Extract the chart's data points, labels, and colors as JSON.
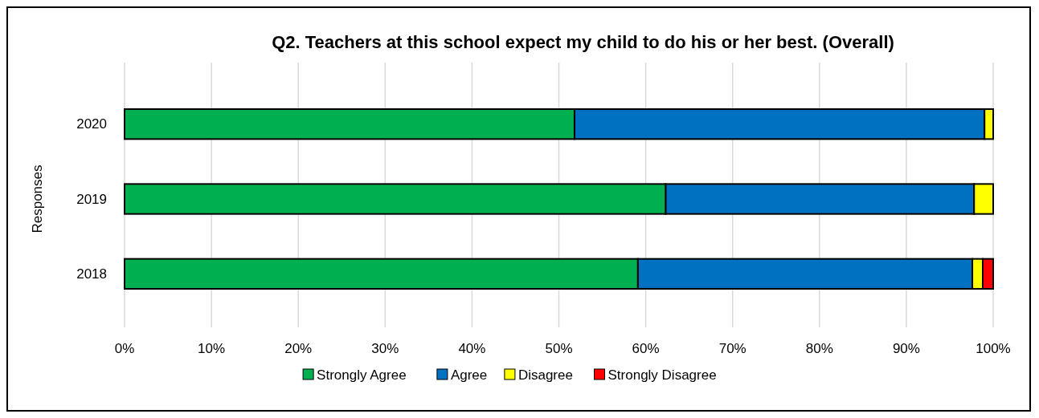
{
  "chart_data": {
    "type": "bar",
    "orientation": "horizontal",
    "stacked": true,
    "title": "Q2. Teachers at this school expect my child to do his or her best. (Overall)",
    "ylabel": "Responses",
    "categories": [
      "2020",
      "2019",
      "2018"
    ],
    "series": [
      {
        "name": "Strongly Agree",
        "color": "#00b050",
        "values": [
          51.8,
          62.3,
          59.1
        ]
      },
      {
        "name": "Agree",
        "color": "#0070c0",
        "values": [
          47.2,
          35.5,
          38.5
        ]
      },
      {
        "name": "Disagree",
        "color": "#ffff00",
        "values": [
          1.0,
          2.2,
          1.2
        ]
      },
      {
        "name": "Strongly Disagree",
        "color": "#ff0000",
        "values": [
          null,
          null,
          1.2
        ]
      }
    ],
    "xlim": [
      0,
      100
    ],
    "xticks": [
      {
        "value": 0,
        "label": "0%"
      },
      {
        "value": 10,
        "label": "10%"
      },
      {
        "value": 20,
        "label": "20%"
      },
      {
        "value": 30,
        "label": "30%"
      },
      {
        "value": 40,
        "label": "40%"
      },
      {
        "value": 50,
        "label": "50%"
      },
      {
        "value": 60,
        "label": "60%"
      },
      {
        "value": 70,
        "label": "70%"
      },
      {
        "value": 80,
        "label": "80%"
      },
      {
        "value": 90,
        "label": "90%"
      },
      {
        "value": 100,
        "label": "100%"
      }
    ],
    "grid": "x",
    "legend": "bottom"
  }
}
